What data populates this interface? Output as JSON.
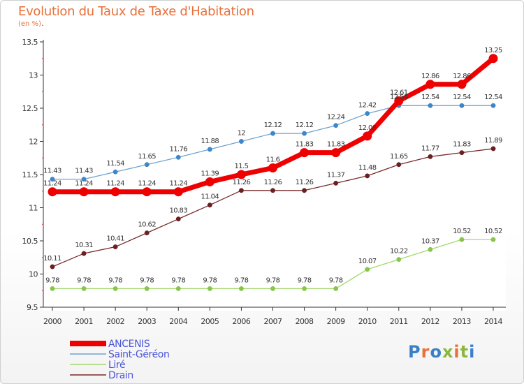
{
  "header": {
    "title": "Evolution du Taux de Taxe d'Habitation",
    "subtitle": "(en %)"
  },
  "logo": {
    "text": "Proxiti",
    "colors": [
      "#3a7fc8",
      "#e8703a",
      "#3a7fc8",
      "#8ab83c",
      "#e8703a",
      "#8ab83c",
      "#3a7fc8"
    ]
  },
  "chart_data": {
    "type": "line",
    "title": "Evolution du Taux de Taxe d'Habitation",
    "subtitle": "(en %)",
    "x": [
      "2000",
      "2001",
      "2002",
      "2003",
      "2004",
      "2005",
      "2006",
      "2007",
      "2008",
      "2009",
      "2010",
      "2011",
      "2012",
      "2013",
      "2014"
    ],
    "ylim": [
      9.5,
      13.5
    ],
    "yticks": [
      "9.5",
      "10",
      "10.5",
      "11",
      "11.5",
      "12",
      "12.5",
      "13",
      "13.5"
    ],
    "grid": false,
    "legend_position": "bottom-left",
    "series": [
      {
        "name": "ANCENIS",
        "color": "#ee0000",
        "bold": true,
        "values": [
          11.24,
          11.24,
          11.24,
          11.24,
          11.24,
          11.39,
          11.5,
          11.6,
          11.83,
          11.83,
          12.08,
          12.61,
          12.86,
          12.86,
          13.25
        ],
        "labels": [
          "11.24",
          "11.24",
          "11.24",
          "11.24",
          "11.24",
          "11.39",
          "11.5",
          "11.6",
          "11.83",
          "11.83",
          "12.08",
          "12.61",
          "12.86",
          "12.86",
          "13.25"
        ]
      },
      {
        "name": "Saint-Géréon",
        "color": "#6fa3d1",
        "point_color": "#3f86c9",
        "values": [
          11.43,
          11.43,
          11.54,
          11.65,
          11.76,
          11.88,
          12,
          12.12,
          12.12,
          12.24,
          12.42,
          12.54,
          12.54,
          12.54,
          12.54
        ],
        "labels": [
          "11.43",
          "11.43",
          "11.54",
          "11.65",
          "11.76",
          "11.88",
          "12",
          "12.12",
          "12.12",
          "12.24",
          "12.42",
          "12.54",
          "12.54",
          "12.54",
          "12.54"
        ]
      },
      {
        "name": "Liré",
        "color": "#a4d86e",
        "point_color": "#86c64a",
        "values": [
          9.78,
          9.78,
          9.78,
          9.78,
          9.78,
          9.78,
          9.78,
          9.78,
          9.78,
          9.78,
          10.07,
          10.22,
          10.37,
          10.52,
          10.52
        ],
        "labels": [
          "9.78",
          "9.78",
          "9.78",
          "9.78",
          "9.78",
          "9.78",
          "9.78",
          "9.78",
          "9.78",
          "9.78",
          "10.07",
          "10.22",
          "10.37",
          "10.52",
          "10.52"
        ]
      },
      {
        "name": "Drain",
        "color": "#7a2a2a",
        "point_color": "#6b1f1f",
        "values": [
          10.11,
          10.31,
          10.41,
          10.62,
          10.83,
          11.04,
          11.26,
          11.26,
          11.26,
          11.37,
          11.48,
          11.65,
          11.77,
          11.83,
          11.89
        ],
        "labels": [
          "10.11",
          "10.31",
          "10.41",
          "10.62",
          "10.83",
          "11.04",
          "11.26",
          "11.26",
          "11.26",
          "11.37",
          "11.48",
          "11.65",
          "11.77",
          "11.83",
          "11.89"
        ]
      }
    ]
  }
}
